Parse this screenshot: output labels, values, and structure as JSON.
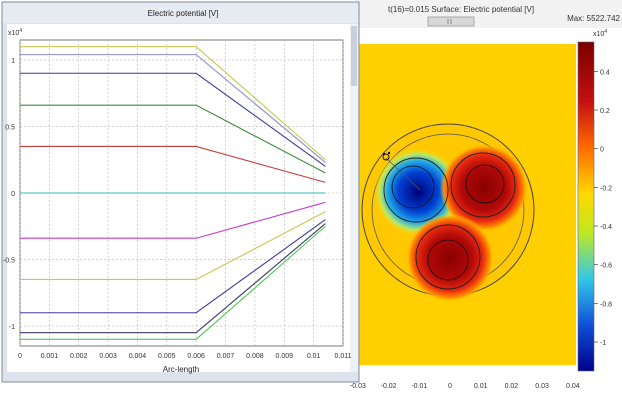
{
  "plot_window": {
    "title": "Electric potential [V]",
    "x_label": "Arc-length",
    "y_exponent_label": "x10",
    "y_exponent_power": "4",
    "x_ticks": [
      "0",
      "0.001",
      "0.002",
      "0.003",
      "0.004",
      "0.005",
      "0.006",
      "0.007",
      "0.008",
      "0.009",
      "0.01",
      "0.011"
    ],
    "y_ticks": [
      "1",
      "0.5",
      "0",
      "-0.5",
      "-1"
    ]
  },
  "surface_view": {
    "title": "t(16)=0.015   Surface: Electric potential [V]",
    "max_label": "Max: 5522.742",
    "colorbar_exponent_label": "x10",
    "colorbar_exponent_power": "4",
    "colorbar_ticks": [
      "0.4",
      "0.2",
      "0",
      "-0.2",
      "-0.4",
      "-0.6",
      "-0.8",
      "-1"
    ],
    "x_ticks": [
      "-0.03",
      "-0.02",
      "-0.01",
      "0",
      "0.01",
      "0.02",
      "0.03",
      "0.04"
    ],
    "colorbar_colors": [
      "#7a0000",
      "#c41010",
      "#ff6a00",
      "#ffd800",
      "#bfe820",
      "#32c8e8",
      "#1050d8",
      "#00008a"
    ]
  },
  "chart_data": {
    "type": "line",
    "x": [
      0,
      0.006,
      0.0104
    ],
    "xlim": [
      0,
      0.011
    ],
    "ylim": [
      -1.15,
      1.15
    ],
    "y_scale_factor": 10000,
    "xlabel": "Arc-length",
    "ylabel": "",
    "title": "Electric potential [V]",
    "grid": true,
    "series": [
      {
        "color": "#c8c850",
        "values": [
          1.1,
          1.1,
          0.25
        ]
      },
      {
        "color": "#8c8cc8",
        "values": [
          1.04,
          1.04,
          0.23
        ]
      },
      {
        "color": "#3c3ca0",
        "values": [
          0.9,
          0.9,
          0.2
        ]
      },
      {
        "color": "#3c8c3c",
        "values": [
          0.66,
          0.66,
          0.15
        ]
      },
      {
        "color": "#c83c3c",
        "values": [
          0.35,
          0.35,
          0.08
        ]
      },
      {
        "color": "#3cb4b4",
        "values": [
          0.0,
          0.0,
          0.0
        ]
      },
      {
        "color": "#c83cc8",
        "values": [
          -0.34,
          -0.34,
          -0.07
        ]
      },
      {
        "color": "#c8c850",
        "values": [
          -0.65,
          -0.65,
          -0.14
        ]
      },
      {
        "color": "#3c3ca0",
        "values": [
          -0.9,
          -0.9,
          -0.2
        ]
      },
      {
        "color": "#3c3c64",
        "values": [
          -1.05,
          -1.05,
          -0.23
        ]
      },
      {
        "color": "#50c850",
        "values": [
          -1.1,
          -1.1,
          -0.25
        ]
      }
    ]
  }
}
